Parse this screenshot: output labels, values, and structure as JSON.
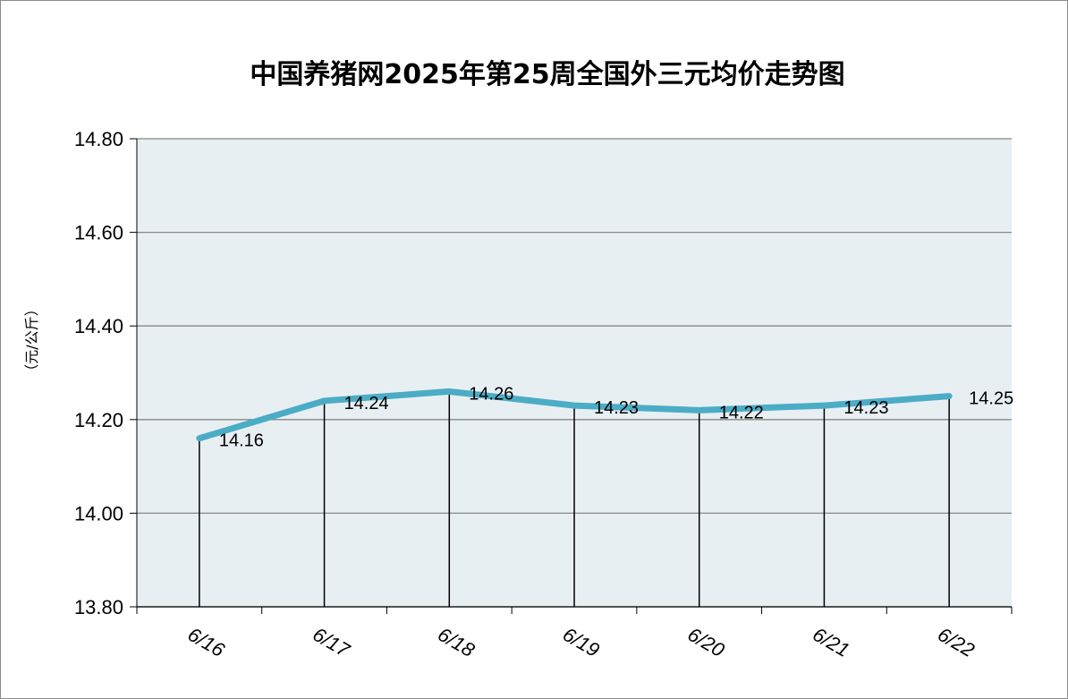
{
  "chart_data": {
    "type": "line",
    "title": "中国养猪网2025年第25周全国外三元均价走势图",
    "ylabel": "（元/公斤）",
    "xlabel": "",
    "categories": [
      "6/16",
      "6/17",
      "6/18",
      "6/19",
      "6/20",
      "6/21",
      "6/22"
    ],
    "series": [
      {
        "values": [
          14.16,
          14.24,
          14.26,
          14.23,
          14.22,
          14.23,
          14.25
        ]
      }
    ],
    "data_labels": [
      "14.16",
      "14.24",
      "14.26",
      "14.23",
      "14.22",
      "14.23",
      "14.25"
    ],
    "ylim": [
      13.8,
      14.8
    ],
    "yticks": [
      "13.80",
      "14.00",
      "14.20",
      "14.40",
      "14.60",
      "14.80"
    ],
    "grid": true,
    "drop_lines": true,
    "colors": {
      "line": "#4bacc6",
      "plot_bg": "#e8eff3",
      "grid": "#878787"
    }
  }
}
